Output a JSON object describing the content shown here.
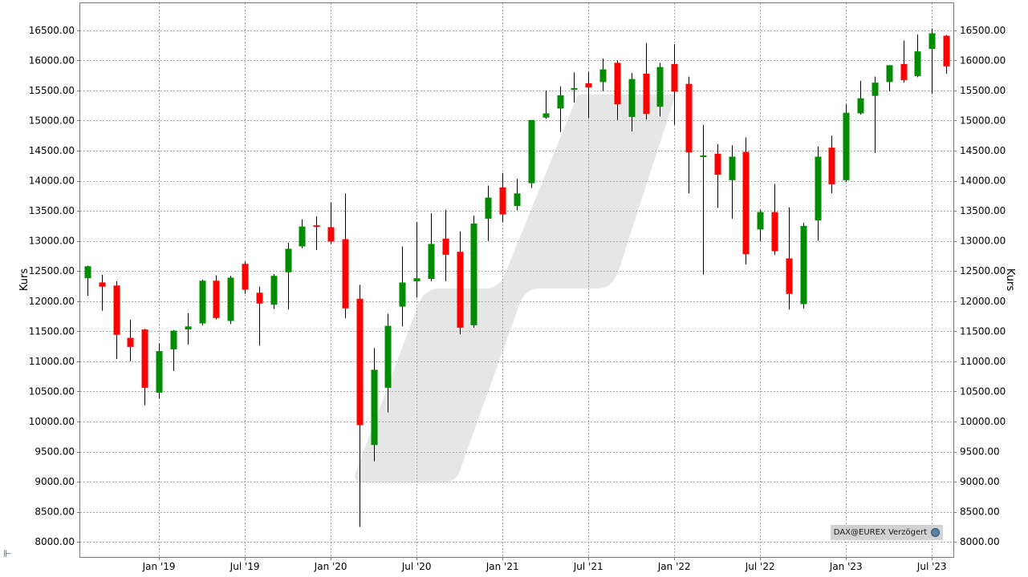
{
  "chart_data": {
    "type": "candlestick",
    "ylabel_left": "Kurs",
    "ylabel_right": "Kurs",
    "ylim": [
      7750,
      16950
    ],
    "y_ticks": [
      8000,
      8500,
      9000,
      9500,
      10000,
      10500,
      11000,
      11500,
      12000,
      12500,
      13000,
      13500,
      14000,
      14500,
      15000,
      15500,
      16000,
      16500
    ],
    "y_tick_labels": [
      "8000.00",
      "8500.00",
      "9000.00",
      "9500.00",
      "10000.00",
      "10500.00",
      "11000.00",
      "11500.00",
      "12000.00",
      "12500.00",
      "13000.00",
      "13500.00",
      "14000.00",
      "14500.00",
      "15000.00",
      "15500.00",
      "16000.00",
      "16500.00"
    ],
    "x_ticks": [
      {
        "month": 8,
        "label": "Jan '19"
      },
      {
        "month": 14,
        "label": "Jul '19"
      },
      {
        "month": 20,
        "label": "Jan '20"
      },
      {
        "month": 26,
        "label": "Jul '20"
      },
      {
        "month": 32,
        "label": "Jan '21"
      },
      {
        "month": 38,
        "label": "Jul '21"
      },
      {
        "month": 44,
        "label": "Jan '22"
      },
      {
        "month": 50,
        "label": "Jul '22"
      },
      {
        "month": 56,
        "label": "Jan '23"
      },
      {
        "month": 62,
        "label": "Jul '23"
      }
    ],
    "x_range": [
      2.5,
      63.5
    ],
    "up_color": "#008c00",
    "down_color": "#ff0000",
    "grid": true,
    "candles": [
      {
        "t": 3,
        "o": 12380,
        "h": 12590,
        "l": 12090,
        "c": 12580
      },
      {
        "t": 4,
        "o": 12310,
        "h": 12440,
        "l": 11840,
        "c": 12240
      },
      {
        "t": 5,
        "o": 12260,
        "h": 12330,
        "l": 11040,
        "c": 11440
      },
      {
        "t": 6,
        "o": 11390,
        "h": 11690,
        "l": 11000,
        "c": 11240
      },
      {
        "t": 7,
        "o": 11530,
        "h": 11540,
        "l": 10270,
        "c": 10560
      },
      {
        "t": 8,
        "o": 10480,
        "h": 11300,
        "l": 10380,
        "c": 11170
      },
      {
        "t": 9,
        "o": 11200,
        "h": 11520,
        "l": 10840,
        "c": 11510
      },
      {
        "t": 10,
        "o": 11530,
        "h": 11800,
        "l": 11280,
        "c": 11580
      },
      {
        "t": 11,
        "o": 11630,
        "h": 12360,
        "l": 11600,
        "c": 12340
      },
      {
        "t": 12,
        "o": 12340,
        "h": 12430,
        "l": 11700,
        "c": 11720
      },
      {
        "t": 13,
        "o": 11670,
        "h": 12420,
        "l": 11620,
        "c": 12390
      },
      {
        "t": 14,
        "o": 12620,
        "h": 12660,
        "l": 12120,
        "c": 12190
      },
      {
        "t": 15,
        "o": 12140,
        "h": 12240,
        "l": 11260,
        "c": 11960
      },
      {
        "t": 16,
        "o": 11940,
        "h": 12450,
        "l": 11870,
        "c": 12420
      },
      {
        "t": 17,
        "o": 12480,
        "h": 12970,
        "l": 11860,
        "c": 12870
      },
      {
        "t": 18,
        "o": 12910,
        "h": 13360,
        "l": 12880,
        "c": 13240
      },
      {
        "t": 19,
        "o": 13260,
        "h": 13410,
        "l": 12850,
        "c": 13240
      },
      {
        "t": 20,
        "o": 13230,
        "h": 13640,
        "l": 12950,
        "c": 12990
      },
      {
        "t": 21,
        "o": 13030,
        "h": 13790,
        "l": 11720,
        "c": 11880
      },
      {
        "t": 22,
        "o": 12040,
        "h": 12270,
        "l": 8250,
        "c": 9940
      },
      {
        "t": 23,
        "o": 9610,
        "h": 11220,
        "l": 9340,
        "c": 10860
      },
      {
        "t": 24,
        "o": 10560,
        "h": 11790,
        "l": 10150,
        "c": 11590
      },
      {
        "t": 25,
        "o": 11910,
        "h": 12910,
        "l": 11580,
        "c": 12310
      },
      {
        "t": 26,
        "o": 12330,
        "h": 13310,
        "l": 12060,
        "c": 12380
      },
      {
        "t": 27,
        "o": 12370,
        "h": 13460,
        "l": 12330,
        "c": 12950
      },
      {
        "t": 28,
        "o": 13040,
        "h": 13520,
        "l": 12330,
        "c": 12770
      },
      {
        "t": 29,
        "o": 12820,
        "h": 13160,
        "l": 11450,
        "c": 11560
      },
      {
        "t": 30,
        "o": 11600,
        "h": 13420,
        "l": 11560,
        "c": 13290
      },
      {
        "t": 31,
        "o": 13370,
        "h": 13920,
        "l": 13000,
        "c": 13720
      },
      {
        "t": 32,
        "o": 13890,
        "h": 14130,
        "l": 13310,
        "c": 13440
      },
      {
        "t": 33,
        "o": 13580,
        "h": 14030,
        "l": 13510,
        "c": 13790
      },
      {
        "t": 34,
        "o": 13960,
        "h": 15010,
        "l": 13880,
        "c": 15010
      },
      {
        "t": 35,
        "o": 15050,
        "h": 15500,
        "l": 15030,
        "c": 15120
      },
      {
        "t": 36,
        "o": 15200,
        "h": 15570,
        "l": 14810,
        "c": 15420
      },
      {
        "t": 37,
        "o": 15510,
        "h": 15800,
        "l": 15300,
        "c": 15540
      },
      {
        "t": 38,
        "o": 15620,
        "h": 15810,
        "l": 15040,
        "c": 15550
      },
      {
        "t": 39,
        "o": 15640,
        "h": 16030,
        "l": 15490,
        "c": 15850
      },
      {
        "t": 40,
        "o": 15960,
        "h": 16000,
        "l": 15010,
        "c": 15270
      },
      {
        "t": 41,
        "o": 15060,
        "h": 15790,
        "l": 14820,
        "c": 15690
      },
      {
        "t": 42,
        "o": 15780,
        "h": 16290,
        "l": 15020,
        "c": 15110
      },
      {
        "t": 43,
        "o": 15230,
        "h": 15960,
        "l": 15070,
        "c": 15890
      },
      {
        "t": 44,
        "o": 15940,
        "h": 16270,
        "l": 14930,
        "c": 15480
      },
      {
        "t": 45,
        "o": 15610,
        "h": 15730,
        "l": 13790,
        "c": 14470
      },
      {
        "t": 46,
        "o": 14410,
        "h": 14930,
        "l": 12440,
        "c": 14420
      },
      {
        "t": 47,
        "o": 14450,
        "h": 14610,
        "l": 13550,
        "c": 14100
      },
      {
        "t": 48,
        "o": 14010,
        "h": 14590,
        "l": 13370,
        "c": 14400
      },
      {
        "t": 49,
        "o": 14480,
        "h": 14720,
        "l": 12610,
        "c": 12780
      },
      {
        "t": 50,
        "o": 13190,
        "h": 13520,
        "l": 13000,
        "c": 13480
      },
      {
        "t": 51,
        "o": 13480,
        "h": 13950,
        "l": 12770,
        "c": 12830
      },
      {
        "t": 52,
        "o": 12710,
        "h": 13560,
        "l": 11860,
        "c": 12120
      },
      {
        "t": 53,
        "o": 11950,
        "h": 13300,
        "l": 11880,
        "c": 13250
      },
      {
        "t": 54,
        "o": 13340,
        "h": 14570,
        "l": 13000,
        "c": 14400
      },
      {
        "t": 55,
        "o": 14550,
        "h": 14750,
        "l": 13790,
        "c": 13940
      },
      {
        "t": 56,
        "o": 14010,
        "h": 15270,
        "l": 13980,
        "c": 15130
      },
      {
        "t": 57,
        "o": 15120,
        "h": 15660,
        "l": 15100,
        "c": 15370
      },
      {
        "t": 58,
        "o": 15410,
        "h": 15730,
        "l": 14460,
        "c": 15630
      },
      {
        "t": 59,
        "o": 15640,
        "h": 15920,
        "l": 15490,
        "c": 15920
      },
      {
        "t": 60,
        "o": 15940,
        "h": 16330,
        "l": 15630,
        "c": 15670
      },
      {
        "t": 61,
        "o": 15740,
        "h": 16430,
        "l": 15720,
        "c": 16150
      },
      {
        "t": 62,
        "o": 16190,
        "h": 16530,
        "l": 15450,
        "c": 16450
      },
      {
        "t": 63,
        "o": 16410,
        "h": 16420,
        "l": 15780,
        "c": 15900
      }
    ]
  },
  "source_label": "DAX@EUREX Verzögert",
  "source_icon": "globe-icon",
  "corner_icon": "chart-settings-icon",
  "colors": {
    "grid": "#a6a6a6",
    "frame": "#777777",
    "watermark": "#e6e6e6",
    "source_box": "#d2d2d2"
  }
}
